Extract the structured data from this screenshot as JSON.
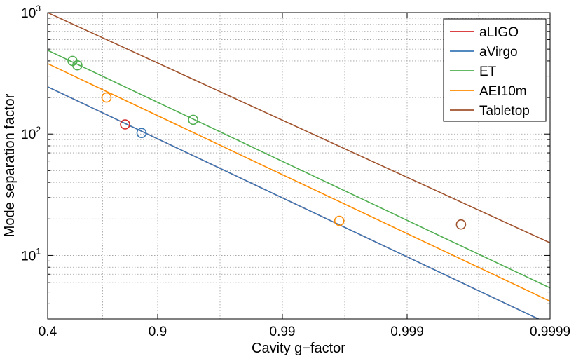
{
  "chart_data": {
    "type": "line",
    "xscale": "log(1-g), reversed",
    "yscale": "log",
    "xlabel": "Cavity g−factor",
    "ylabel": "Mode separation factor",
    "xlim": [
      0.4,
      0.9999
    ],
    "ylim": [
      3,
      1000
    ],
    "grid": true,
    "legend_position": "top-right",
    "x_ticks": [
      {
        "value": 0.4,
        "label": "0.4"
      },
      {
        "value": 0.9,
        "label": "0.9"
      },
      {
        "value": 0.99,
        "label": "0.99"
      },
      {
        "value": 0.999,
        "label": "0.999"
      },
      {
        "value": 0.9999,
        "label": "0.9999"
      }
    ],
    "y_ticks": [
      {
        "value": 10,
        "base": "10",
        "exp": "1"
      },
      {
        "value": 100,
        "base": "10",
        "exp": "2"
      },
      {
        "value": 1000,
        "base": "10",
        "exp": "3"
      }
    ],
    "series": [
      {
        "name": "aLIGO",
        "color": "#d62728",
        "line": [
          [
            0.4,
            245
          ],
          [
            0.9999,
            2.7
          ]
        ],
        "markers": [
          [
            0.83,
            120
          ]
        ]
      },
      {
        "name": "aVirgo",
        "color": "#3a78b5",
        "line": [
          [
            0.4,
            245
          ],
          [
            0.9999,
            2.7
          ]
        ],
        "markers": [
          [
            0.87,
            102
          ]
        ]
      },
      {
        "name": "ET",
        "color": "#4fae4f",
        "line": [
          [
            0.4,
            490
          ],
          [
            0.9999,
            5.4
          ]
        ],
        "markers": [
          [
            0.6,
            400
          ],
          [
            0.63,
            368
          ],
          [
            0.948,
            131
          ]
        ]
      },
      {
        "name": "AEI10m",
        "color": "#ff8c00",
        "line": [
          [
            0.4,
            380
          ],
          [
            0.9999,
            4.2
          ]
        ],
        "markers": [
          [
            0.77,
            200
          ],
          [
            0.9965,
            19.3
          ]
        ]
      },
      {
        "name": "Tabletop",
        "color": "#a0522d",
        "line": [
          [
            0.4,
            1000
          ],
          [
            0.9999,
            12.7
          ]
        ],
        "markers": [
          [
            0.99958,
            18
          ]
        ]
      }
    ]
  }
}
